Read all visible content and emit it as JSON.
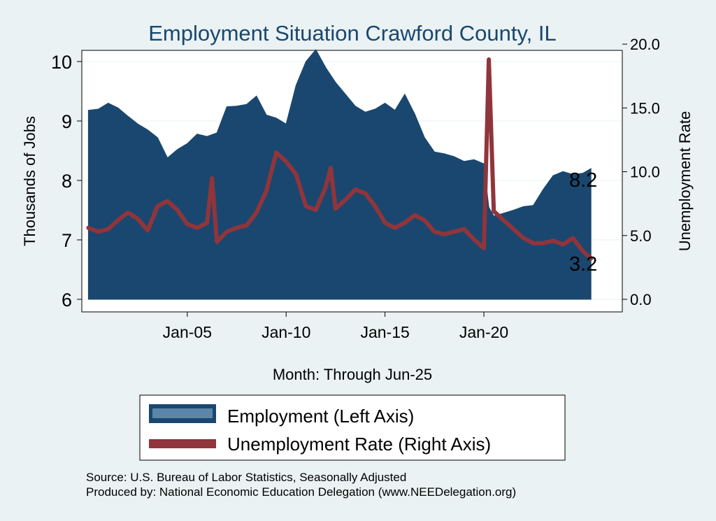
{
  "chart_data": {
    "type": "area+line",
    "title": "Employment Situation Crawford  County, IL",
    "xlabel": "Month: Through Jun-25",
    "ylabel_left": "Thousands of Jobs",
    "ylabel_right": "Unemployment Rate",
    "ylim_left": [
      6,
      10.4
    ],
    "ylim_right": [
      0,
      20.5
    ],
    "yticks_left": [
      "6",
      "7",
      "8",
      "9",
      "10"
    ],
    "yticks_right": [
      "0.0",
      "5.0",
      "10.0",
      "15.0",
      "20.0"
    ],
    "xticks": [
      {
        "label": "Jan-05",
        "date": "2005-01"
      },
      {
        "label": "Jan-10",
        "date": "2010-01"
      },
      {
        "label": "Jan-15",
        "date": "2015-01"
      },
      {
        "label": "Jan-20",
        "date": "2020-01"
      }
    ],
    "x_range": [
      "1999-09",
      "2027-01"
    ],
    "grid": true,
    "legend_position": "bottom",
    "colors": {
      "employment": "#1a476f",
      "unemployment": "#90353b",
      "background": "#eaf2f3",
      "plot_background": "#ffffff",
      "grid": "#eaf2f3"
    },
    "last_labels": {
      "employment": "8.2",
      "unemployment": "3.2"
    },
    "series": [
      {
        "name": "Employment (Left Axis)",
        "axis": "left",
        "type": "area",
        "x": [
          "2000-01",
          "2000-07",
          "2001-01",
          "2001-07",
          "2002-01",
          "2002-07",
          "2003-01",
          "2003-07",
          "2004-01",
          "2004-07",
          "2005-01",
          "2005-07",
          "2006-01",
          "2006-07",
          "2007-01",
          "2007-07",
          "2008-01",
          "2008-07",
          "2009-01",
          "2009-07",
          "2010-01",
          "2010-07",
          "2011-01",
          "2011-07",
          "2012-01",
          "2012-07",
          "2013-01",
          "2013-07",
          "2014-01",
          "2014-07",
          "2015-01",
          "2015-07",
          "2016-01",
          "2016-07",
          "2017-01",
          "2017-07",
          "2018-01",
          "2018-07",
          "2019-01",
          "2019-07",
          "2020-01",
          "2020-04",
          "2020-07",
          "2021-01",
          "2021-07",
          "2022-01",
          "2022-07",
          "2023-01",
          "2023-07",
          "2024-01",
          "2024-07",
          "2025-01",
          "2025-06"
        ],
        "values": [
          9.18,
          9.2,
          9.3,
          9.22,
          9.08,
          8.95,
          8.85,
          8.72,
          8.38,
          8.52,
          8.62,
          8.78,
          8.74,
          8.8,
          9.24,
          9.25,
          9.28,
          9.42,
          9.1,
          9.05,
          8.95,
          9.6,
          10.0,
          10.2,
          9.9,
          9.65,
          9.45,
          9.25,
          9.15,
          9.2,
          9.3,
          9.18,
          9.45,
          9.12,
          8.72,
          8.48,
          8.45,
          8.4,
          8.32,
          8.35,
          8.28,
          7.55,
          7.4,
          7.45,
          7.5,
          7.56,
          7.58,
          7.85,
          8.08,
          8.15,
          8.1,
          8.12,
          8.2
        ]
      },
      {
        "name": "Unemployment Rate (Right Axis)",
        "axis": "right",
        "type": "line",
        "x": [
          "2000-01",
          "2000-07",
          "2001-01",
          "2001-07",
          "2002-01",
          "2002-07",
          "2003-01",
          "2003-07",
          "2004-01",
          "2004-07",
          "2005-01",
          "2005-07",
          "2006-01",
          "2006-04",
          "2006-07",
          "2007-01",
          "2007-07",
          "2008-01",
          "2008-07",
          "2009-01",
          "2009-07",
          "2010-01",
          "2010-07",
          "2011-01",
          "2011-07",
          "2012-01",
          "2012-04",
          "2012-07",
          "2013-01",
          "2013-07",
          "2014-01",
          "2014-07",
          "2015-01",
          "2015-07",
          "2016-01",
          "2016-07",
          "2017-01",
          "2017-07",
          "2018-01",
          "2018-07",
          "2019-01",
          "2019-07",
          "2020-01",
          "2020-04",
          "2020-07",
          "2021-01",
          "2021-07",
          "2022-01",
          "2022-07",
          "2023-01",
          "2023-07",
          "2024-01",
          "2024-07",
          "2025-01",
          "2025-06"
        ],
        "values": [
          5.6,
          5.3,
          5.5,
          6.2,
          6.8,
          6.3,
          5.4,
          7.3,
          7.7,
          7.0,
          5.9,
          5.6,
          6.0,
          9.5,
          4.5,
          5.3,
          5.6,
          5.8,
          6.8,
          8.5,
          11.5,
          10.8,
          9.8,
          7.3,
          7.0,
          8.8,
          10.3,
          7.1,
          7.8,
          8.6,
          8.3,
          7.3,
          6.0,
          5.6,
          6.0,
          6.6,
          6.2,
          5.3,
          5.1,
          5.3,
          5.5,
          4.7,
          4.0,
          18.8,
          6.9,
          6.2,
          5.5,
          4.8,
          4.4,
          4.4,
          4.6,
          4.3,
          4.8,
          3.8,
          3.2
        ]
      }
    ]
  },
  "footer": {
    "source": "Source: U.S. Bureau of Labor Statistics, Seasonally Adjusted",
    "produced": "Produced by: National Economic Education Delegation (www.NEEDelegation.org)"
  }
}
